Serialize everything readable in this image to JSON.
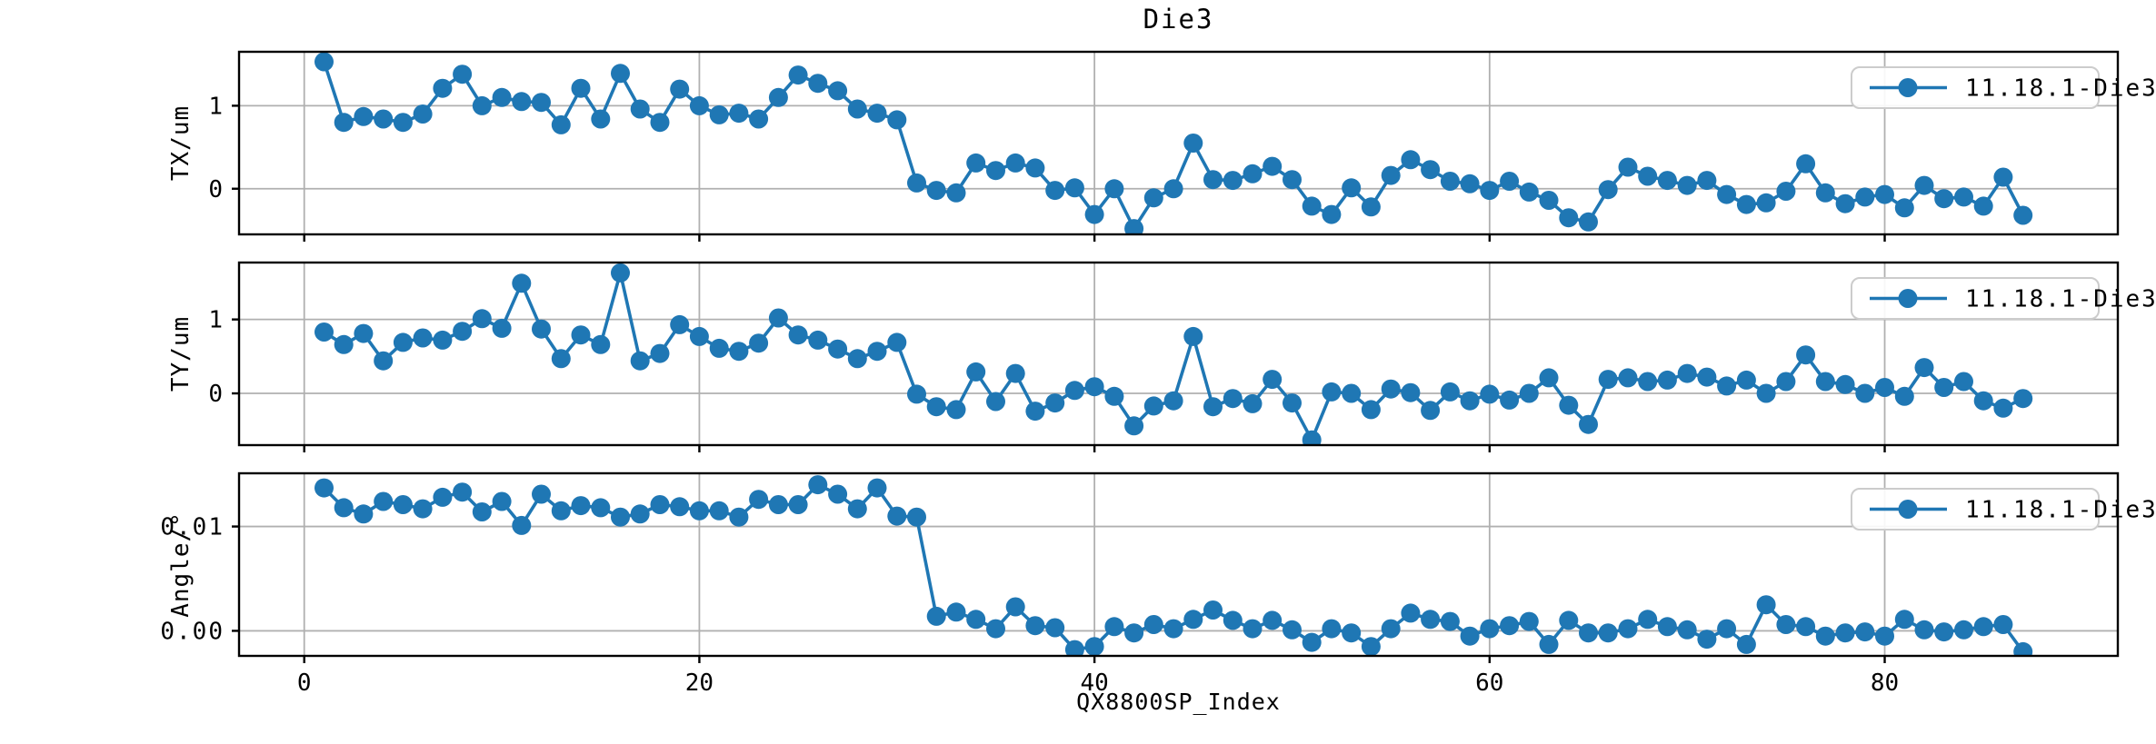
{
  "figure": {
    "title": "Die3",
    "xlabel": "QX8800SP_Index",
    "legend_label": "11.18.1-Die3",
    "line_color": "#1f77b4",
    "grid_color": "#b0b0b0",
    "axis_color": "#000000",
    "legend_edge_color": "#cccccc",
    "background": "#ffffff"
  },
  "chart_data": {
    "type": "line",
    "title": "Die3",
    "xlabel": "QX8800SP_Index",
    "grid": true,
    "color": "#1f77b4",
    "marker": "o",
    "legend": {
      "label": "11.18.1-Die3",
      "position": "upper right"
    },
    "xlim": [
      -3.3,
      91.8
    ],
    "xticks": [
      0,
      20,
      40,
      60,
      80
    ],
    "x": [
      1,
      2,
      3,
      4,
      5,
      6,
      7,
      8,
      9,
      10,
      11,
      12,
      13,
      14,
      15,
      16,
      17,
      18,
      19,
      20,
      21,
      22,
      23,
      24,
      25,
      26,
      27,
      28,
      29,
      30,
      31,
      32,
      33,
      34,
      35,
      36,
      37,
      38,
      39,
      40,
      41,
      42,
      43,
      44,
      45,
      46,
      47,
      48,
      49,
      50,
      51,
      52,
      53,
      54,
      55,
      56,
      57,
      58,
      59,
      60,
      61,
      62,
      63,
      64,
      65,
      66,
      67,
      68,
      69,
      70,
      71,
      72,
      73,
      74,
      75,
      76,
      77,
      78,
      79,
      80,
      81,
      82,
      83,
      84,
      85,
      86,
      87
    ],
    "subplots": [
      {
        "ylabel": "TX/um",
        "ylim": [
          -0.55,
          1.65
        ],
        "yticks": [
          {
            "value": 1,
            "label": "1"
          },
          {
            "value": 0,
            "label": "0"
          }
        ],
        "series": [
          {
            "name": "11.18.1-Die3",
            "values": [
              1.53,
              0.8,
              0.87,
              0.84,
              0.8,
              0.9,
              1.21,
              1.38,
              1.0,
              1.1,
              1.05,
              1.04,
              0.77,
              1.21,
              0.84,
              1.39,
              0.96,
              0.8,
              1.2,
              1.0,
              0.89,
              0.91,
              0.84,
              1.1,
              1.37,
              1.27,
              1.18,
              0.96,
              0.91,
              0.83,
              0.07,
              -0.02,
              -0.05,
              0.31,
              0.22,
              0.31,
              0.25,
              -0.02,
              0.01,
              -0.31,
              0.0,
              -0.48,
              -0.11,
              0.0,
              0.55,
              0.11,
              0.1,
              0.18,
              0.27,
              0.11,
              -0.21,
              -0.31,
              0.01,
              -0.22,
              0.16,
              0.35,
              0.23,
              0.09,
              0.06,
              -0.02,
              0.09,
              -0.04,
              -0.14,
              -0.35,
              -0.4,
              -0.01,
              0.26,
              0.15,
              0.1,
              0.04,
              0.1,
              -0.07,
              -0.19,
              -0.17,
              -0.03,
              0.3,
              -0.05,
              -0.18,
              -0.1,
              -0.07,
              -0.23,
              0.04,
              -0.12,
              -0.1,
              -0.21,
              0.14,
              -0.32
            ]
          }
        ]
      },
      {
        "ylabel": "TY/um",
        "ylim": [
          -0.7,
          1.77
        ],
        "yticks": [
          {
            "value": 1,
            "label": "1"
          },
          {
            "value": 0,
            "label": "0"
          }
        ],
        "series": [
          {
            "name": "11.18.1-Die3",
            "values": [
              0.83,
              0.66,
              0.81,
              0.44,
              0.69,
              0.75,
              0.72,
              0.84,
              1.01,
              0.88,
              1.49,
              0.87,
              0.47,
              0.79,
              0.66,
              1.63,
              0.44,
              0.54,
              0.93,
              0.77,
              0.61,
              0.57,
              0.68,
              1.02,
              0.79,
              0.72,
              0.6,
              0.47,
              0.57,
              0.69,
              -0.01,
              -0.18,
              -0.22,
              0.29,
              -0.11,
              0.27,
              -0.24,
              -0.13,
              0.04,
              0.09,
              -0.04,
              -0.44,
              -0.17,
              -0.1,
              0.77,
              -0.18,
              -0.07,
              -0.14,
              0.19,
              -0.13,
              -0.63,
              0.02,
              0.0,
              -0.22,
              0.06,
              0.01,
              -0.23,
              0.02,
              -0.1,
              -0.01,
              -0.09,
              0.0,
              0.21,
              -0.16,
              -0.42,
              0.19,
              0.21,
              0.16,
              0.18,
              0.27,
              0.22,
              0.1,
              0.18,
              0.0,
              0.16,
              0.52,
              0.16,
              0.12,
              0.0,
              0.08,
              -0.04,
              0.35,
              0.08,
              0.16,
              -0.1,
              -0.2,
              -0.07
            ]
          }
        ]
      },
      {
        "ylabel": "Angle/°",
        "ylim": [
          -0.0024,
          0.0151
        ],
        "yticks": [
          {
            "value": 0.01,
            "label": "0.01"
          },
          {
            "value": 0,
            "label": "0.00"
          }
        ],
        "series": [
          {
            "name": "11.18.1-Die3",
            "values": [
              0.0137,
              0.0118,
              0.0112,
              0.0124,
              0.0121,
              0.0117,
              0.0128,
              0.0133,
              0.0114,
              0.0124,
              0.0101,
              0.0131,
              0.0115,
              0.012,
              0.0118,
              0.0109,
              0.0112,
              0.0121,
              0.0119,
              0.0115,
              0.0115,
              0.0109,
              0.0126,
              0.0121,
              0.0121,
              0.014,
              0.0131,
              0.0117,
              0.0137,
              0.011,
              0.0109,
              0.0014,
              0.0018,
              0.0011,
              0.0002,
              0.0023,
              0.0005,
              0.0003,
              -0.0018,
              -0.0015,
              0.0004,
              -0.0002,
              0.0006,
              0.0002,
              0.0011,
              0.002,
              0.001,
              0.0002,
              0.001,
              0.0001,
              -0.0011,
              0.0002,
              -0.0002,
              -0.0015,
              0.0002,
              0.0017,
              0.0011,
              0.0009,
              -0.0005,
              0.0002,
              0.0005,
              0.0009,
              -0.0013,
              0.001,
              -0.0002,
              -0.0002,
              0.0002,
              0.0011,
              0.0004,
              0.0001,
              -0.0008,
              0.0002,
              -0.0013,
              0.0025,
              0.0006,
              0.0004,
              -0.0005,
              -0.0002,
              -0.0001,
              -0.0005,
              0.0011,
              0.0001,
              -0.0001,
              0.0001,
              0.0004,
              0.0006,
              -0.002
            ]
          }
        ]
      }
    ]
  }
}
